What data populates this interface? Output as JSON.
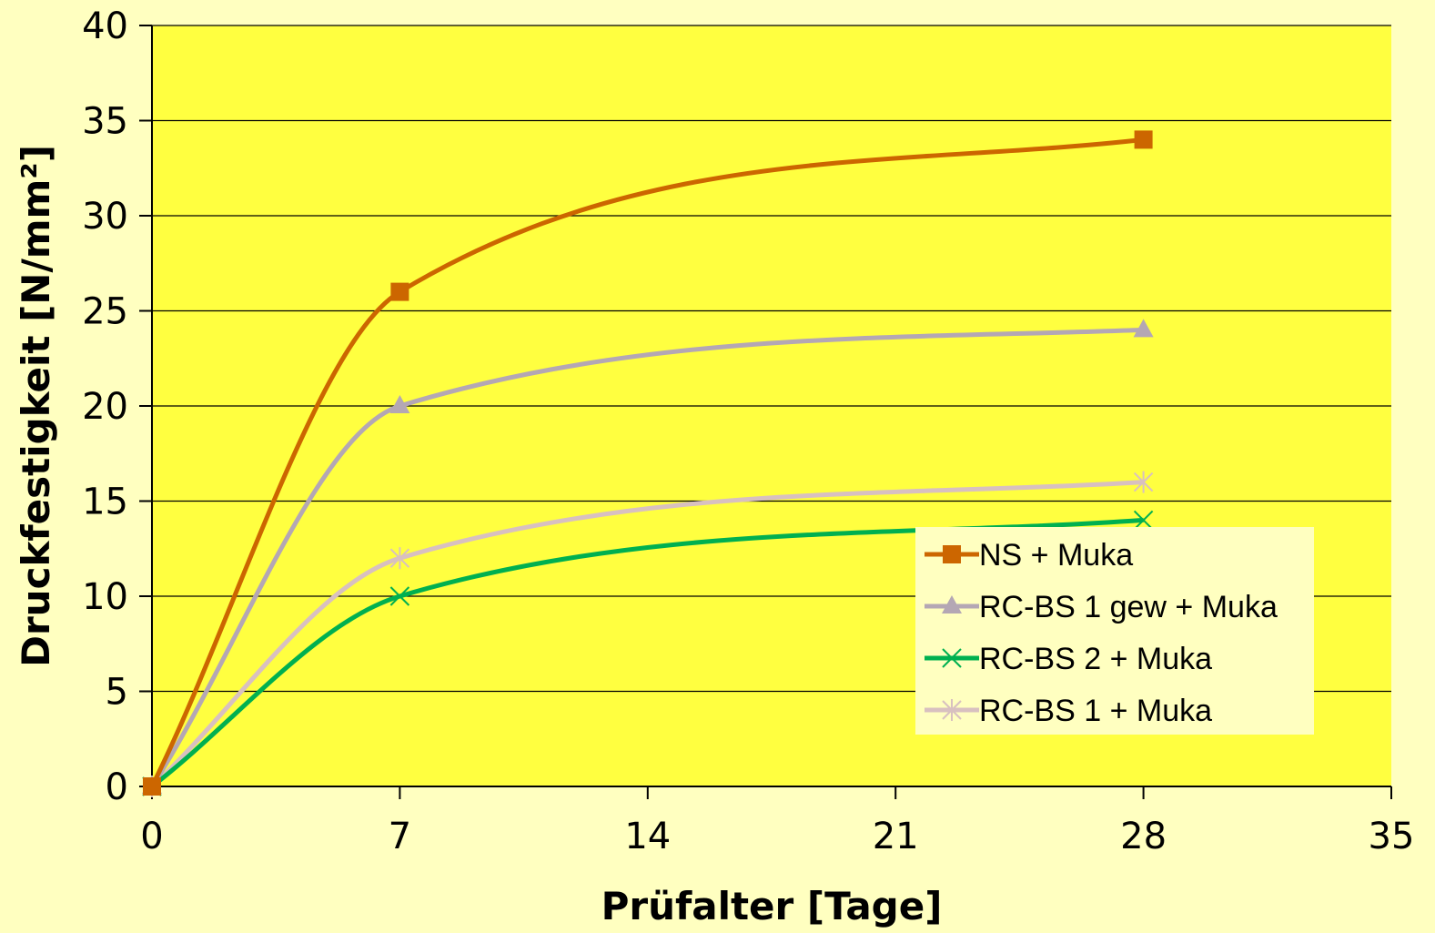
{
  "chart_data": {
    "type": "line",
    "title": "",
    "xlabel": "Prüfalter [Tage]",
    "ylabel": "Druckfestigkeit [N/mm²]",
    "xlim": [
      0,
      35
    ],
    "ylim": [
      0,
      40
    ],
    "x_ticks": [
      "0",
      "7",
      "14",
      "21",
      "28",
      "35"
    ],
    "y_ticks": [
      "0",
      "5",
      "10",
      "15",
      "20",
      "25",
      "30",
      "35",
      "40"
    ],
    "grid": "horizontal",
    "legend_position": "lower-right",
    "plot_background": "#FFFF40",
    "page_background": "#FFFFC0",
    "x": [
      0,
      7,
      28
    ],
    "series": [
      {
        "name": "NS + Muka",
        "values": [
          0,
          26,
          34
        ],
        "color": "#CC6600",
        "marker": "square"
      },
      {
        "name": "RC-BS 1 gew + Muka",
        "values": [
          0,
          20,
          24
        ],
        "color": "#B4A7B4",
        "marker": "triangle"
      },
      {
        "name": "RC-BS 2 + Muka",
        "values": [
          0,
          10,
          14
        ],
        "color": "#00B050",
        "marker": "x"
      },
      {
        "name": "RC-BS 1 + Muka",
        "values": [
          0,
          12,
          16
        ],
        "color": "#D8C0C0",
        "marker": "asterisk"
      }
    ]
  }
}
